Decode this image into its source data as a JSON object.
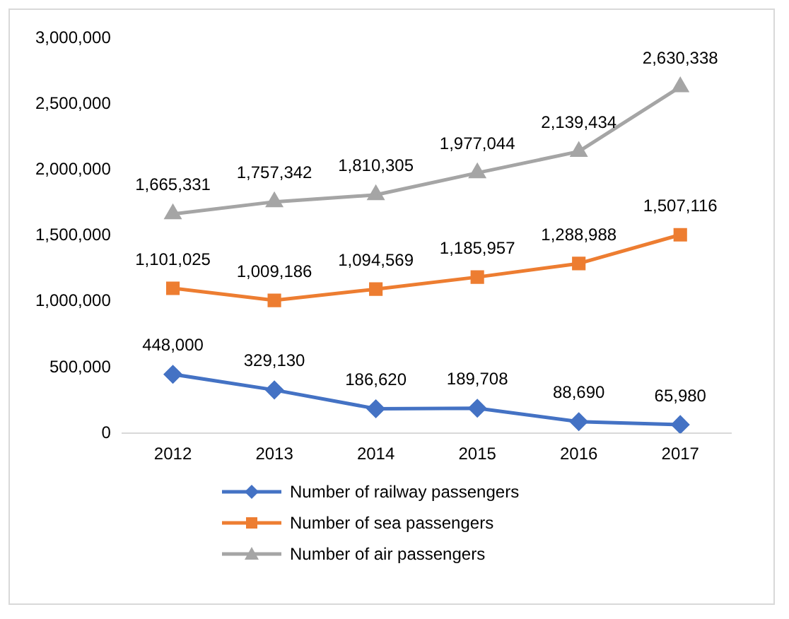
{
  "chart_data": {
    "type": "line",
    "categories": [
      "2012",
      "2013",
      "2014",
      "2015",
      "2016",
      "2017"
    ],
    "series": [
      {
        "name": "Number of railway passengers",
        "color": "#4472c4",
        "marker": "diamond",
        "values": [
          448000,
          329130,
          186620,
          189708,
          88690,
          65980
        ],
        "value_labels": [
          "448,000",
          "329,130",
          "186,620",
          "189,708",
          "88,690",
          "65,980"
        ]
      },
      {
        "name": "Number of sea passengers",
        "color": "#ed7d31",
        "marker": "square",
        "values": [
          1101025,
          1009186,
          1094569,
          1185957,
          1288988,
          1507116
        ],
        "value_labels": [
          "1,101,025",
          "1,009,186",
          "1,094,569",
          "1,185,957",
          "1,288,988",
          "1,507,116"
        ]
      },
      {
        "name": "Number of air passengers",
        "color": "#a5a5a5",
        "marker": "triangle",
        "values": [
          1665331,
          1757342,
          1810305,
          1977044,
          2139434,
          2630338
        ],
        "value_labels": [
          "1,665,331",
          "1,757,342",
          "1,810,305",
          "1,977,044",
          "2,139,434",
          "2,630,338"
        ]
      }
    ],
    "ylim": [
      0,
      3000000
    ],
    "yticks": [
      0,
      {
        "value": 500000,
        "label": "500,000"
      },
      {
        "value": 1000000,
        "label": "1,000,000"
      },
      {
        "value": 1500000,
        "label": "1,500,000"
      },
      {
        "value": 2000000,
        "label": "2,000,000"
      },
      {
        "value": 2500000,
        "label": "2,500,000"
      },
      {
        "value": 3000000,
        "label": "3,000,000"
      }
    ],
    "grid": false,
    "legend": "bottom"
  }
}
